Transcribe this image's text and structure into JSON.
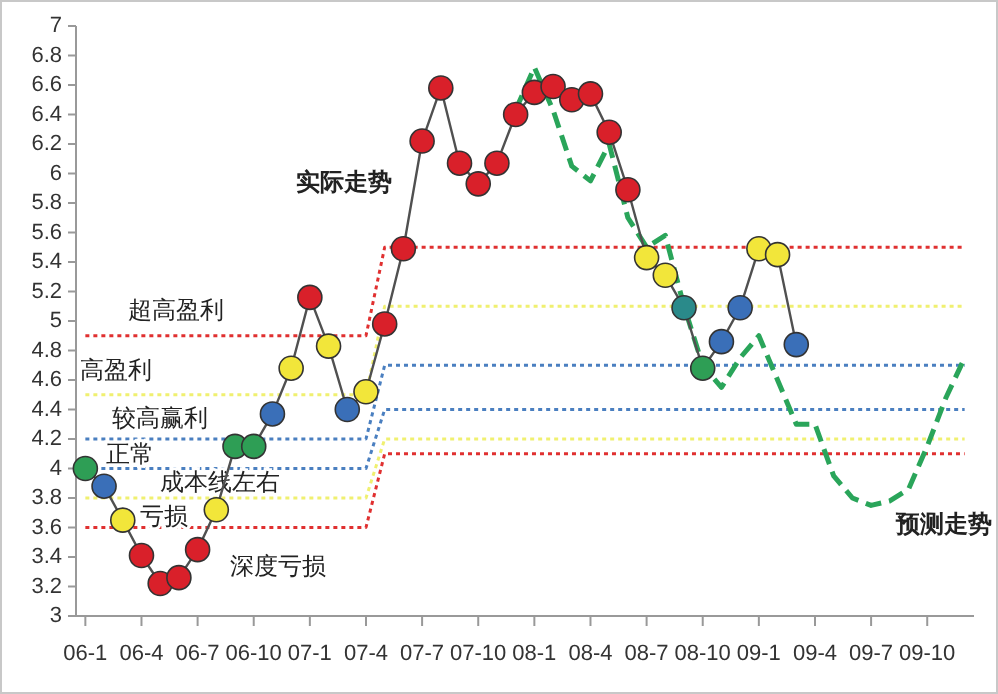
{
  "chart_data": {
    "type": "line",
    "categories": [
      "06-1",
      null,
      null,
      "06-4",
      null,
      null,
      "06-7",
      null,
      null,
      "06-10",
      null,
      null,
      "07-1",
      null,
      null,
      "07-4",
      null,
      null,
      "07-7",
      null,
      null,
      "07-10",
      null,
      null,
      "08-1",
      null,
      null,
      "08-4",
      null,
      null,
      "08-7",
      null,
      null,
      "08-10",
      null,
      null,
      "09-1",
      null,
      null,
      "09-4",
      null,
      null,
      "09-7",
      null,
      null,
      "09-10",
      null,
      null
    ],
    "ylim": [
      3,
      7
    ],
    "yticks": [
      3,
      3.2,
      3.4,
      3.6,
      3.8,
      4,
      4.2,
      4.4,
      4.6,
      4.8,
      5,
      5.2,
      5.4,
      5.6,
      5.8,
      6,
      6.2,
      6.4,
      6.6,
      6.8,
      7
    ],
    "series": [
      {
        "name": "超高盈利",
        "line_style": "dotted",
        "marker": "none",
        "color": "#e03030",
        "values": [
          4.9,
          4.9,
          4.9,
          4.9,
          4.9,
          4.9,
          4.9,
          4.9,
          4.9,
          4.9,
          4.9,
          4.9,
          4.9,
          4.9,
          4.9,
          4.9,
          5.5,
          5.5,
          5.5,
          5.5,
          5.5,
          5.5,
          5.5,
          5.5,
          5.5,
          5.5,
          5.5,
          5.5,
          5.5,
          5.5,
          5.5,
          5.5,
          5.5,
          5.5,
          5.5,
          5.5,
          5.5,
          5.5,
          5.5,
          5.5,
          5.5,
          5.5,
          5.5,
          5.5,
          5.5,
          5.5,
          5.5,
          5.5
        ]
      },
      {
        "name": "高盈利",
        "line_style": "dotted",
        "marker": "none",
        "color": "#f0f070",
        "values": [
          4.5,
          4.5,
          4.5,
          4.5,
          4.5,
          4.5,
          4.5,
          4.5,
          4.5,
          4.5,
          4.5,
          4.5,
          4.5,
          4.5,
          4.5,
          4.5,
          5.1,
          5.1,
          5.1,
          5.1,
          5.1,
          5.1,
          5.1,
          5.1,
          5.1,
          5.1,
          5.1,
          5.1,
          5.1,
          5.1,
          5.1,
          5.1,
          5.1,
          5.1,
          5.1,
          5.1,
          5.1,
          5.1,
          5.1,
          5.1,
          5.1,
          5.1,
          5.1,
          5.1,
          5.1,
          5.1,
          5.1,
          5.1
        ]
      },
      {
        "name": "较高赢利",
        "line_style": "dotted",
        "marker": "none",
        "color": "#4a7fc0",
        "values": [
          4.2,
          4.2,
          4.2,
          4.2,
          4.2,
          4.2,
          4.2,
          4.2,
          4.2,
          4.2,
          4.2,
          4.2,
          4.2,
          4.2,
          4.2,
          4.2,
          4.7,
          4.7,
          4.7,
          4.7,
          4.7,
          4.7,
          4.7,
          4.7,
          4.7,
          4.7,
          4.7,
          4.7,
          4.7,
          4.7,
          4.7,
          4.7,
          4.7,
          4.7,
          4.7,
          4.7,
          4.7,
          4.7,
          4.7,
          4.7,
          4.7,
          4.7,
          4.7,
          4.7,
          4.7,
          4.7,
          4.7,
          4.7
        ]
      },
      {
        "name": "正常",
        "line_style": "dotted",
        "marker": "none",
        "color": "#4a7fc0",
        "values": [
          4.0,
          4.0,
          4.0,
          4.0,
          4.0,
          4.0,
          4.0,
          4.0,
          4.0,
          4.0,
          4.0,
          4.0,
          4.0,
          4.0,
          4.0,
          4.0,
          4.4,
          4.4,
          4.4,
          4.4,
          4.4,
          4.4,
          4.4,
          4.4,
          4.4,
          4.4,
          4.4,
          4.4,
          4.4,
          4.4,
          4.4,
          4.4,
          4.4,
          4.4,
          4.4,
          4.4,
          4.4,
          4.4,
          4.4,
          4.4,
          4.4,
          4.4,
          4.4,
          4.4,
          4.4,
          4.4,
          4.4,
          4.4
        ]
      },
      {
        "name": "成本线左右",
        "line_style": "dotted",
        "marker": "none",
        "color": "#f0f070",
        "values": [
          3.8,
          3.8,
          3.8,
          3.8,
          3.8,
          3.8,
          3.8,
          3.8,
          3.8,
          3.8,
          3.8,
          3.8,
          3.8,
          3.8,
          3.8,
          3.8,
          4.2,
          4.2,
          4.2,
          4.2,
          4.2,
          4.2,
          4.2,
          4.2,
          4.2,
          4.2,
          4.2,
          4.2,
          4.2,
          4.2,
          4.2,
          4.2,
          4.2,
          4.2,
          4.2,
          4.2,
          4.2,
          4.2,
          4.2,
          4.2,
          4.2,
          4.2,
          4.2,
          4.2,
          4.2,
          4.2,
          4.2,
          4.2
        ]
      },
      {
        "name": "亏损",
        "line_style": "dotted",
        "marker": "none",
        "color": "#e03030",
        "values": [
          3.6,
          3.6,
          3.6,
          3.6,
          3.6,
          3.6,
          3.6,
          3.6,
          3.6,
          3.6,
          3.6,
          3.6,
          3.6,
          3.6,
          3.6,
          3.6,
          4.1,
          4.1,
          4.1,
          4.1,
          4.1,
          4.1,
          4.1,
          4.1,
          4.1,
          4.1,
          4.1,
          4.1,
          4.1,
          4.1,
          4.1,
          4.1,
          4.1,
          4.1,
          4.1,
          4.1,
          4.1,
          4.1,
          4.1,
          4.1,
          4.1,
          4.1,
          4.1,
          4.1,
          4.1,
          4.1,
          4.1,
          4.1
        ]
      },
      {
        "name": "预测走势",
        "line_style": "dashed",
        "marker": "none",
        "color": "#2aa55a",
        "values": [
          null,
          null,
          null,
          null,
          null,
          null,
          null,
          null,
          null,
          null,
          null,
          null,
          null,
          null,
          null,
          null,
          null,
          null,
          null,
          null,
          null,
          null,
          null,
          6.43,
          6.72,
          6.43,
          6.05,
          5.95,
          6.2,
          5.7,
          5.5,
          5.58,
          5.1,
          4.7,
          4.55,
          4.75,
          4.9,
          4.6,
          4.3,
          4.3,
          3.95,
          3.8,
          3.75,
          3.78,
          3.86,
          4.15,
          4.48,
          4.75
        ]
      },
      {
        "name": "实际走势",
        "line_style": "solid",
        "marker": "circle",
        "color": "#505050",
        "values": [
          4.0,
          3.88,
          3.65,
          3.41,
          3.22,
          3.26,
          3.45,
          3.72,
          4.15,
          4.15,
          4.37,
          4.68,
          5.16,
          4.83,
          4.4,
          4.52,
          4.98,
          5.49,
          6.22,
          6.58,
          6.07,
          5.93,
          6.07,
          6.4,
          6.55,
          6.59,
          6.5,
          6.54,
          6.28,
          5.89,
          5.43,
          5.31,
          5.09,
          4.68,
          4.86,
          5.09,
          5.49,
          5.45,
          4.84,
          null,
          null,
          null,
          null,
          null,
          null,
          null,
          null,
          null
        ],
        "colors": [
          "#2e9e55",
          "#3a6fb8",
          "#f2e63a",
          "#d9202a",
          "#d9202a",
          "#d9202a",
          "#d9202a",
          "#f2e63a",
          "#2e9e55",
          "#2e9e55",
          "#3a6fb8",
          "#f2e63a",
          "#d9202a",
          "#f2e63a",
          "#3a6fb8",
          "#f2e63a",
          "#d9202a",
          "#d9202a",
          "#d9202a",
          "#d9202a",
          "#d9202a",
          "#d9202a",
          "#d9202a",
          "#d9202a",
          "#d9202a",
          "#d9202a",
          "#d9202a",
          "#d9202a",
          "#d9202a",
          "#d9202a",
          "#f2e63a",
          "#f2e63a",
          "#2a8a8a",
          "#2e9e55",
          "#3a6fb8",
          "#3a6fb8",
          "#f2e63a",
          "#f2e63a",
          "#3a6fb8",
          null,
          null,
          null,
          null,
          null,
          null,
          null,
          null,
          null
        ]
      }
    ],
    "annotations": [
      "深度亏损"
    ]
  }
}
